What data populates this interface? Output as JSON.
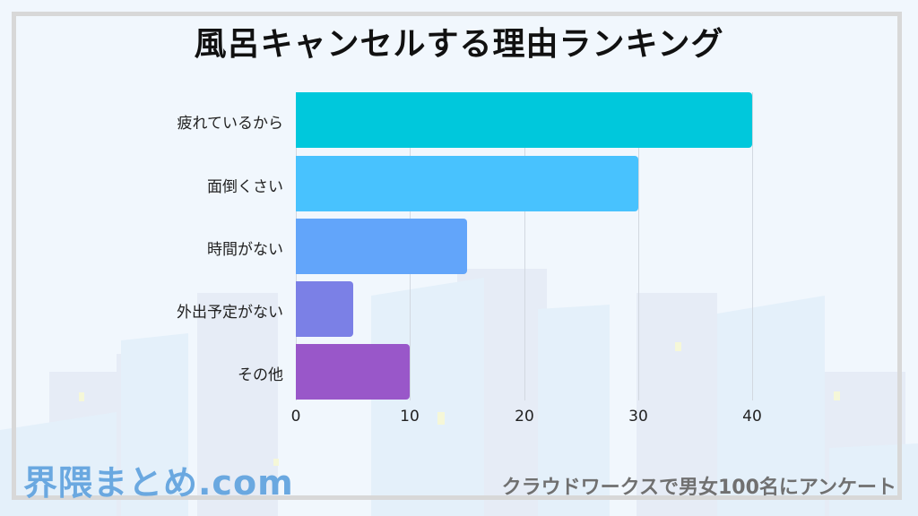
{
  "title": "風呂キャンセルする理由ランキング",
  "chart_data": {
    "type": "bar",
    "orientation": "horizontal",
    "title": "風呂キャンセルする理由ランキング",
    "categories": [
      "疲れているから",
      "面倒くさい",
      "時間がない",
      "外出予定がない",
      "その他"
    ],
    "values": [
      40,
      30,
      15,
      5,
      10
    ],
    "colors": [
      "#00c8dc",
      "#48c2fe",
      "#62a5fa",
      "#7b80e6",
      "#9957c9"
    ],
    "xlabel": "",
    "ylabel": "",
    "xlim": [
      0,
      40
    ],
    "xticks": [
      "0",
      "10",
      "20",
      "30",
      "40"
    ],
    "grid": true,
    "legend": "none"
  },
  "footer": {
    "logo": "界隈まとめ.com",
    "note": "クラウドワークスで男女100名にアンケート"
  }
}
